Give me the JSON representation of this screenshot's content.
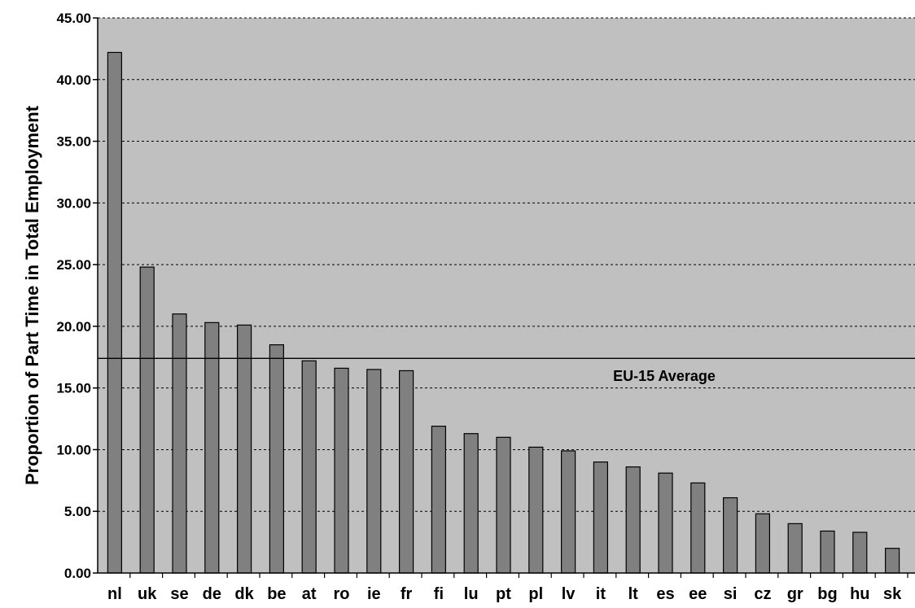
{
  "chart_data": {
    "type": "bar",
    "title": "",
    "xlabel": "",
    "ylabel": "Proportion of Part Time in Total Employment",
    "ylim": [
      0,
      45
    ],
    "yticks": [
      "0.00",
      "5.00",
      "10.00",
      "15.00",
      "20.00",
      "25.00",
      "30.00",
      "35.00",
      "40.00",
      "45.00"
    ],
    "grid": true,
    "categories": [
      "nl",
      "uk",
      "se",
      "de",
      "dk",
      "be",
      "at",
      "ro",
      "ie",
      "fr",
      "fi",
      "lu",
      "pt",
      "pl",
      "lv",
      "it",
      "lt",
      "es",
      "ee",
      "si",
      "cz",
      "gr",
      "bg",
      "hu",
      "sk"
    ],
    "values": [
      42.2,
      24.8,
      21.0,
      20.3,
      20.1,
      18.5,
      17.2,
      16.6,
      16.5,
      16.4,
      11.9,
      11.3,
      11.0,
      10.2,
      9.9,
      9.0,
      8.6,
      8.1,
      7.3,
      6.1,
      4.8,
      4.0,
      3.4,
      3.3,
      2.0
    ],
    "reference_line": {
      "label": "EU-15 Average",
      "value": 17.4
    },
    "colors": {
      "plot_background": "#c0c0c0",
      "bar_fill": "#808080",
      "bar_stroke": "#000000"
    }
  }
}
